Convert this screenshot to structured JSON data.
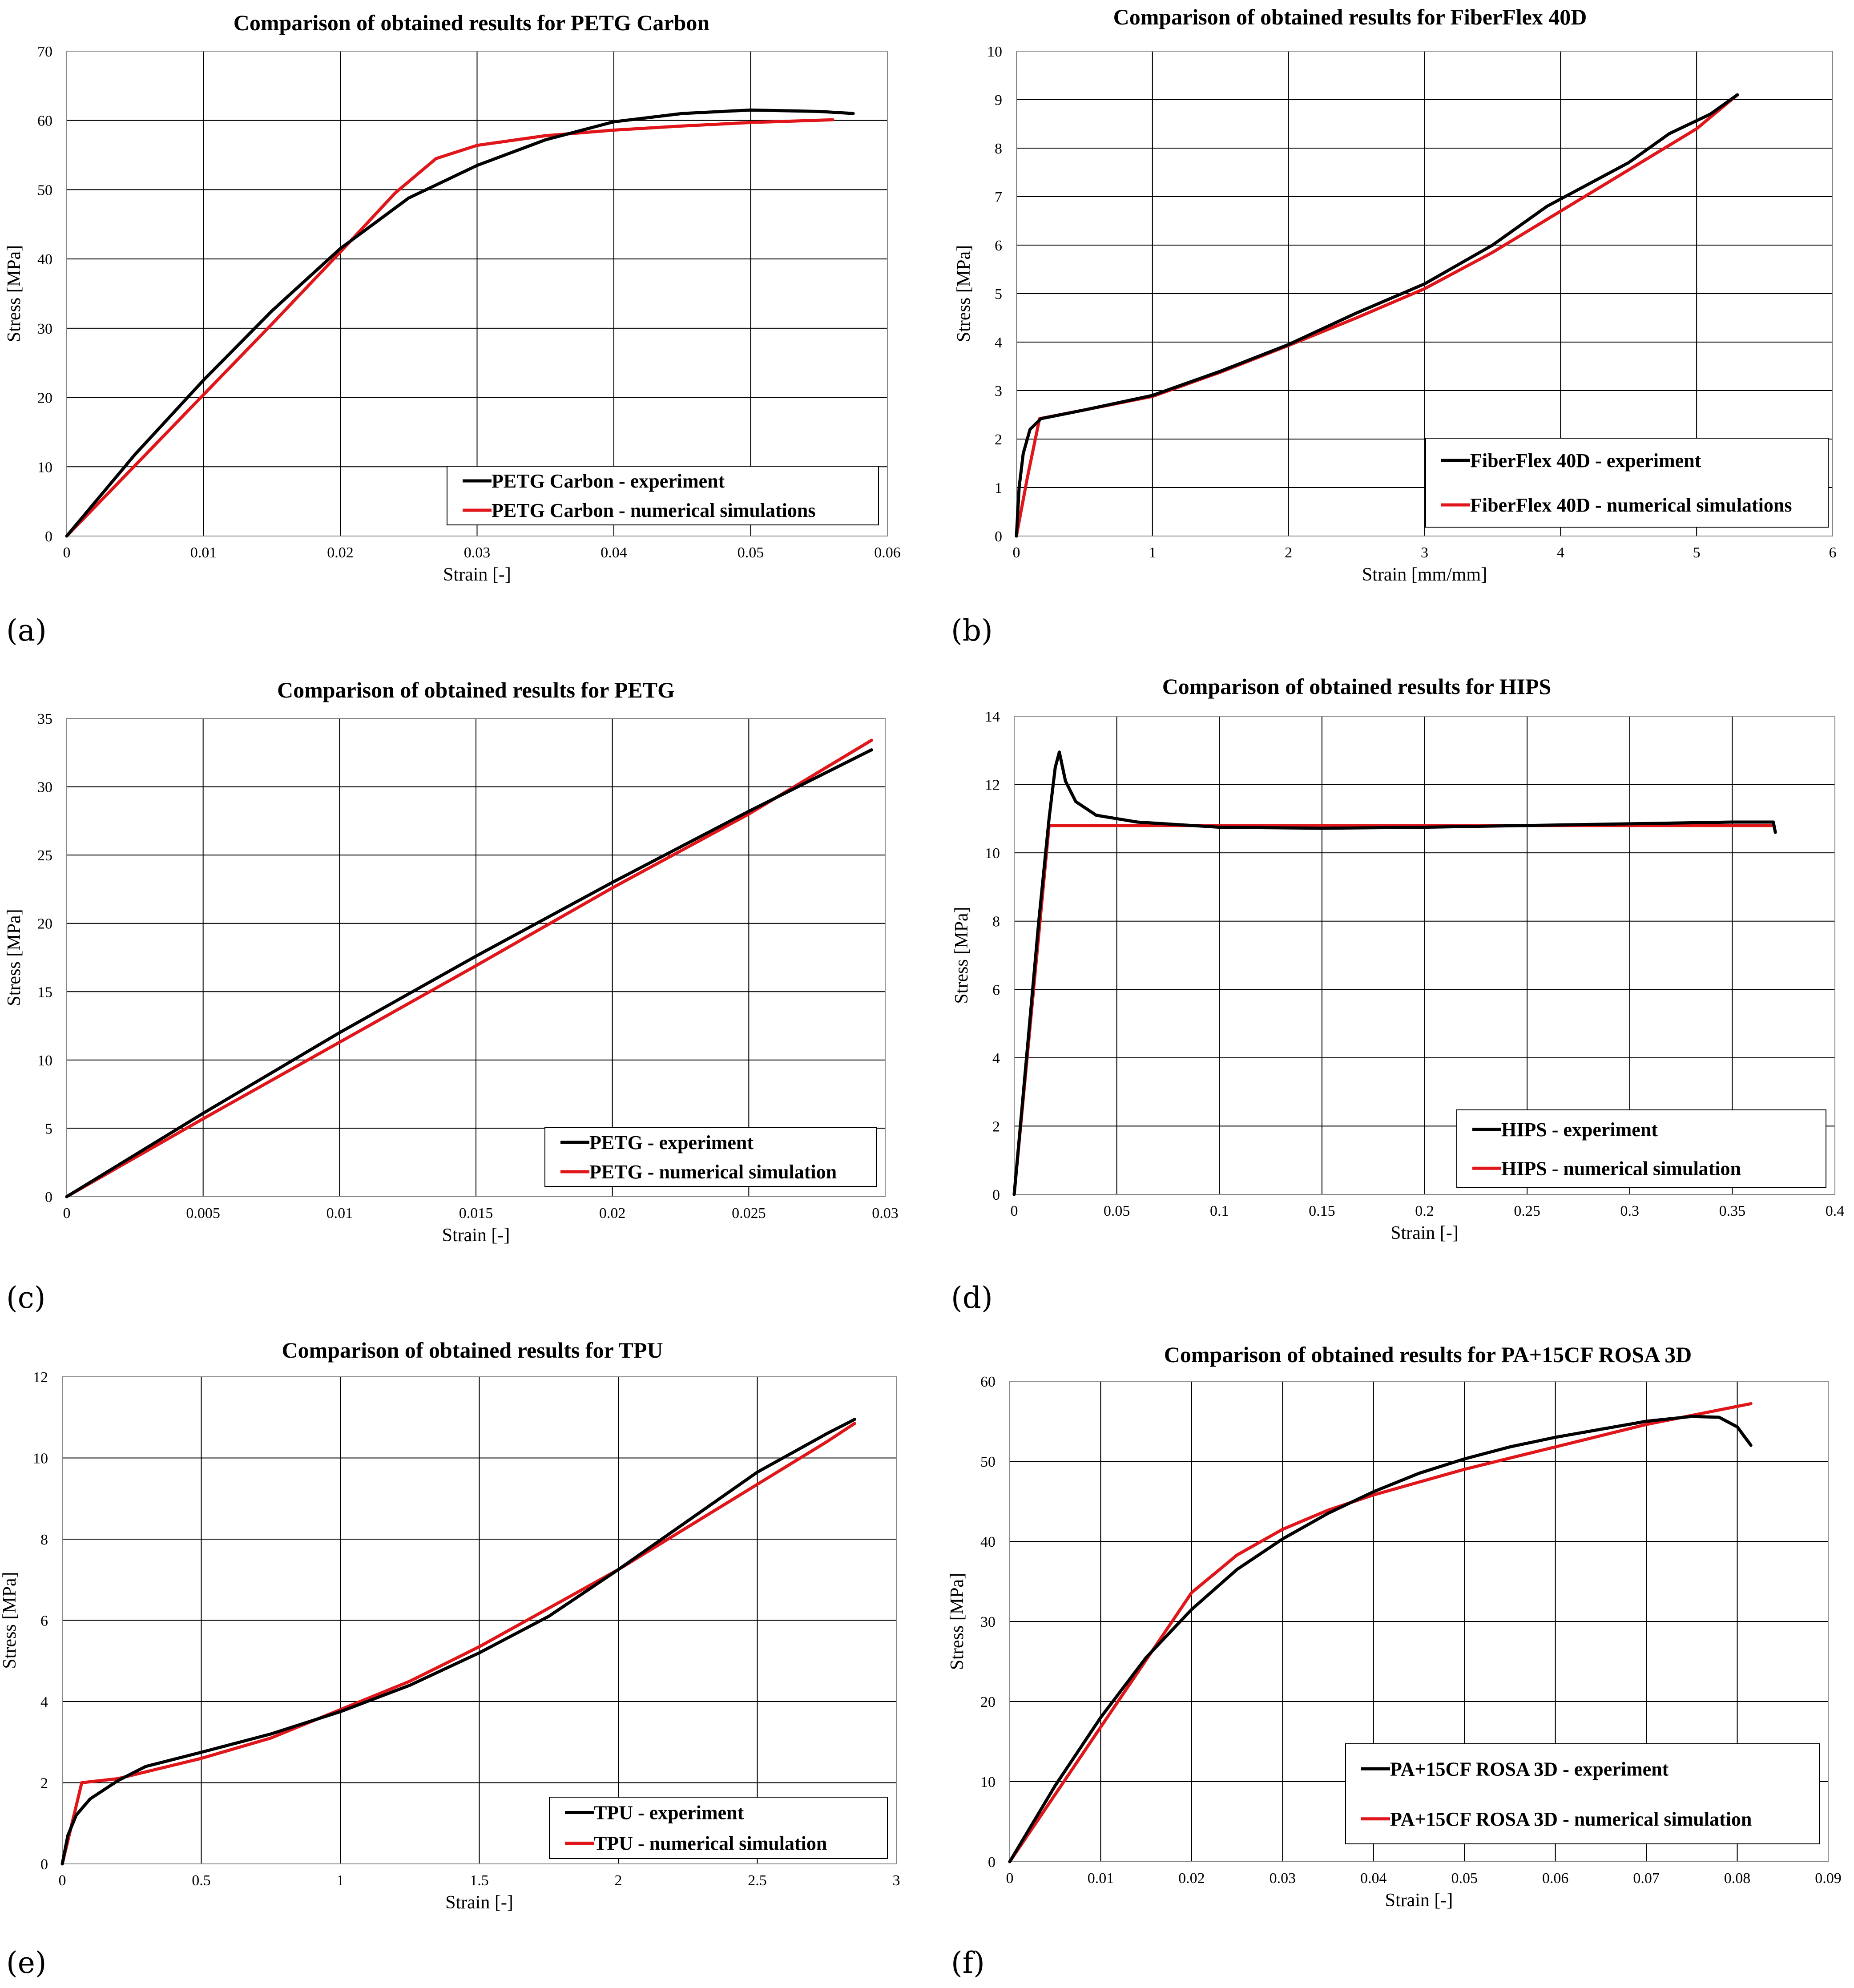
{
  "panel_labels": [
    "(a)",
    "(b)",
    "(c)",
    "(d)",
    "(e)",
    "(f)"
  ],
  "chart_data": [
    {
      "type": "line",
      "title": "Comparison of obtained results for PETG Carbon",
      "xlabel": "Strain [-]",
      "ylabel": "Stress [MPa]",
      "xlim": [
        0,
        0.06
      ],
      "ylim": [
        0,
        70
      ],
      "xticks": [
        0,
        0.01,
        0.02,
        0.03,
        0.04,
        0.05,
        0.06
      ],
      "yticks": [
        0,
        10,
        20,
        30,
        40,
        50,
        60,
        70
      ],
      "xtick_labels": [
        "0",
        "0.01",
        "0.02",
        "0.03",
        "0.04",
        "0.05",
        "0.06"
      ],
      "ytick_labels": [
        "0",
        "10",
        "20",
        "30",
        "40",
        "50",
        "60",
        "70"
      ],
      "grid": true,
      "legend": "bottom-right",
      "series": [
        {
          "name": "PETG Carbon - experiment",
          "color": "#000000",
          "points": [
            [
              0,
              0
            ],
            [
              0.005,
              11.8
            ],
            [
              0.01,
              22.5
            ],
            [
              0.015,
              32.5
            ],
            [
              0.02,
              41.5
            ],
            [
              0.025,
              48.8
            ],
            [
              0.03,
              53.5
            ],
            [
              0.035,
              57.2
            ],
            [
              0.04,
              59.8
            ],
            [
              0.045,
              61
            ],
            [
              0.05,
              61.5
            ],
            [
              0.055,
              61.3
            ],
            [
              0.0575,
              61
            ]
          ]
        },
        {
          "name": "PETG Carbon - numerical simulations",
          "color": "#e0161b",
          "points": [
            [
              0,
              0
            ],
            [
              0.005,
              10.2
            ],
            [
              0.01,
              20.4
            ],
            [
              0.015,
              30.6
            ],
            [
              0.02,
              41
            ],
            [
              0.024,
              49.5
            ],
            [
              0.027,
              54.5
            ],
            [
              0.03,
              56.4
            ],
            [
              0.035,
              57.8
            ],
            [
              0.04,
              58.6
            ],
            [
              0.045,
              59.2
            ],
            [
              0.05,
              59.7
            ],
            [
              0.056,
              60.1
            ]
          ]
        }
      ]
    },
    {
      "type": "line",
      "title": "Comparison of obtained results for FiberFlex 40D",
      "xlabel": "Strain [mm/mm]",
      "ylabel": "Stress [MPa]",
      "xlim": [
        0,
        6
      ],
      "ylim": [
        0,
        10
      ],
      "xticks": [
        0,
        1,
        2,
        3,
        4,
        5,
        6
      ],
      "yticks": [
        0,
        1,
        2,
        3,
        4,
        5,
        6,
        7,
        8,
        9,
        10
      ],
      "xtick_labels": [
        "0",
        "1",
        "2",
        "3",
        "4",
        "5",
        "6"
      ],
      "ytick_labels": [
        "0",
        "1",
        "2",
        "3",
        "4",
        "5",
        "6",
        "7",
        "8",
        "9",
        "10"
      ],
      "grid": true,
      "legend": "bottom-right",
      "series": [
        {
          "name": "FiberFlex 40D - experiment",
          "color": "#000000",
          "points": [
            [
              0,
              0
            ],
            [
              0.02,
              1
            ],
            [
              0.05,
              1.7
            ],
            [
              0.1,
              2.2
            ],
            [
              0.18,
              2.42
            ],
            [
              0.5,
              2.6
            ],
            [
              1,
              2.9
            ],
            [
              1.5,
              3.4
            ],
            [
              2,
              3.95
            ],
            [
              2.5,
              4.6
            ],
            [
              3,
              5.2
            ],
            [
              3.5,
              6
            ],
            [
              3.9,
              6.8
            ],
            [
              4.5,
              7.7
            ],
            [
              4.8,
              8.3
            ],
            [
              5.1,
              8.7
            ],
            [
              5.3,
              9.1
            ]
          ]
        },
        {
          "name": "FiberFlex 40D - numerical simulations",
          "color": "#e0161b",
          "points": [
            [
              0,
              0
            ],
            [
              0.08,
              1.2
            ],
            [
              0.17,
              2.42
            ],
            [
              0.5,
              2.6
            ],
            [
              1,
              2.88
            ],
            [
              1.5,
              3.38
            ],
            [
              2,
              3.93
            ],
            [
              2.5,
              4.5
            ],
            [
              3,
              5.1
            ],
            [
              3.5,
              5.85
            ],
            [
              4,
              6.7
            ],
            [
              4.5,
              7.55
            ],
            [
              5,
              8.4
            ],
            [
              5.3,
              9.1
            ]
          ]
        }
      ]
    },
    {
      "type": "line",
      "title": "Comparison of obtained results for PETG",
      "xlabel": "Strain [-]",
      "ylabel": "Stress [MPa]",
      "xlim": [
        0,
        0.03
      ],
      "ylim": [
        0,
        35
      ],
      "xticks": [
        0,
        0.005,
        0.01,
        0.015,
        0.02,
        0.025,
        0.03
      ],
      "yticks": [
        0,
        5,
        10,
        15,
        20,
        25,
        30,
        35
      ],
      "xtick_labels": [
        "0",
        "0.005",
        "0.01",
        "0.015",
        "0.02",
        "0.025",
        "0.03"
      ],
      "ytick_labels": [
        "0",
        "5",
        "10",
        "15",
        "20",
        "25",
        "30",
        "35"
      ],
      "grid": true,
      "legend": "bottom-right",
      "series": [
        {
          "name": "PETG - experiment",
          "color": "#000000",
          "points": [
            [
              0,
              0
            ],
            [
              0.005,
              6.1
            ],
            [
              0.01,
              12
            ],
            [
              0.015,
              17.6
            ],
            [
              0.02,
              23
            ],
            [
              0.025,
              28.2
            ],
            [
              0.0295,
              32.7
            ]
          ]
        },
        {
          "name": "PETG - numerical simulation",
          "color": "#e0161b",
          "points": [
            [
              0,
              0
            ],
            [
              0.005,
              5.7
            ],
            [
              0.01,
              11.3
            ],
            [
              0.015,
              16.9
            ],
            [
              0.02,
              22.6
            ],
            [
              0.025,
              28
            ],
            [
              0.0295,
              33.4
            ]
          ]
        }
      ]
    },
    {
      "type": "line",
      "title": "Comparison of obtained results for HIPS",
      "xlabel": "Strain [-]",
      "ylabel": "Stress [MPa]",
      "xlim": [
        0,
        0.4
      ],
      "ylim": [
        0,
        14
      ],
      "xticks": [
        0,
        0.05,
        0.1,
        0.15,
        0.2,
        0.25,
        0.3,
        0.35,
        0.4
      ],
      "yticks": [
        0,
        2,
        4,
        6,
        8,
        10,
        12,
        14
      ],
      "xtick_labels": [
        "0",
        "0.05",
        "0.1",
        "0.15",
        "0.2",
        "0.25",
        "0.3",
        "0.35",
        "0.4"
      ],
      "ytick_labels": [
        "0",
        "2",
        "4",
        "6",
        "8",
        "10",
        "12",
        "14"
      ],
      "grid": true,
      "legend": "bottom-right",
      "series": [
        {
          "name": "HIPS - experiment",
          "color": "#000000",
          "points": [
            [
              0,
              0
            ],
            [
              0.006,
              4
            ],
            [
              0.012,
              8
            ],
            [
              0.017,
              11
            ],
            [
              0.02,
              12.5
            ],
            [
              0.022,
              12.95
            ],
            [
              0.025,
              12.1
            ],
            [
              0.03,
              11.5
            ],
            [
              0.04,
              11.1
            ],
            [
              0.06,
              10.9
            ],
            [
              0.1,
              10.75
            ],
            [
              0.15,
              10.72
            ],
            [
              0.2,
              10.75
            ],
            [
              0.25,
              10.8
            ],
            [
              0.3,
              10.85
            ],
            [
              0.35,
              10.9
            ],
            [
              0.37,
              10.9
            ],
            [
              0.371,
              10.6
            ]
          ]
        },
        {
          "name": "HIPS - numerical simulation",
          "color": "#e0161b",
          "points": [
            [
              0,
              0
            ],
            [
              0.017,
              10.8
            ],
            [
              0.37,
              10.8
            ]
          ]
        }
      ]
    },
    {
      "type": "line",
      "title": "Comparison of obtained results for TPU",
      "xlabel": "Strain [-]",
      "ylabel": "Stress [MPa]",
      "xlim": [
        0,
        3
      ],
      "ylim": [
        0,
        12
      ],
      "xticks": [
        0,
        0.5,
        1,
        1.5,
        2,
        2.5,
        3
      ],
      "yticks": [
        0,
        2,
        4,
        6,
        8,
        10,
        12
      ],
      "xtick_labels": [
        "0",
        "0.5",
        "1",
        "1.5",
        "2",
        "2.5",
        "3"
      ],
      "ytick_labels": [
        "0",
        "2",
        "4",
        "6",
        "8",
        "10",
        "12"
      ],
      "grid": true,
      "legend": "bottom-right",
      "series": [
        {
          "name": "TPU - experiment",
          "color": "#000000",
          "points": [
            [
              0,
              0
            ],
            [
              0.02,
              0.7
            ],
            [
              0.05,
              1.2
            ],
            [
              0.1,
              1.6
            ],
            [
              0.2,
              2.05
            ],
            [
              0.3,
              2.4
            ],
            [
              0.5,
              2.75
            ],
            [
              0.75,
              3.2
            ],
            [
              1,
              3.75
            ],
            [
              1.25,
              4.4
            ],
            [
              1.5,
              5.2
            ],
            [
              1.75,
              6.1
            ],
            [
              2,
              7.25
            ],
            [
              2.25,
              8.45
            ],
            [
              2.5,
              9.65
            ],
            [
              2.75,
              10.6
            ],
            [
              2.85,
              10.95
            ]
          ]
        },
        {
          "name": "TPU - numerical simulation",
          "color": "#e0161b",
          "points": [
            [
              0,
              0
            ],
            [
              0.07,
              2
            ],
            [
              0.2,
              2.1
            ],
            [
              0.5,
              2.6
            ],
            [
              0.75,
              3.1
            ],
            [
              1,
              3.8
            ],
            [
              1.25,
              4.5
            ],
            [
              1.5,
              5.35
            ],
            [
              1.75,
              6.3
            ],
            [
              2,
              7.25
            ],
            [
              2.25,
              8.3
            ],
            [
              2.5,
              9.35
            ],
            [
              2.75,
              10.4
            ],
            [
              2.85,
              10.85
            ]
          ]
        }
      ]
    },
    {
      "type": "line",
      "title": "Comparison of obtained results for PA+15CF ROSA 3D",
      "xlabel": "Strain [-]",
      "ylabel": "Stress [MPa]",
      "xlim": [
        0,
        0.09
      ],
      "ylim": [
        0,
        60
      ],
      "xticks": [
        0,
        0.01,
        0.02,
        0.03,
        0.04,
        0.05,
        0.06,
        0.07,
        0.08,
        0.09
      ],
      "yticks": [
        0,
        10,
        20,
        30,
        40,
        50,
        60
      ],
      "xtick_labels": [
        "0",
        "0.01",
        "0.02",
        "0.03",
        "0.04",
        "0.05",
        "0.06",
        "0.07",
        "0.08",
        "0.09"
      ],
      "ytick_labels": [
        "0",
        "10",
        "20",
        "30",
        "40",
        "50",
        "60"
      ],
      "grid": true,
      "legend": "bottom-right",
      "series": [
        {
          "name": "PA+15CF ROSA 3D - experiment",
          "color": "#000000",
          "points": [
            [
              0,
              0
            ],
            [
              0.005,
              9.5
            ],
            [
              0.01,
              18
            ],
            [
              0.015,
              25.5
            ],
            [
              0.02,
              31.5
            ],
            [
              0.025,
              36.5
            ],
            [
              0.03,
              40.3
            ],
            [
              0.035,
              43.5
            ],
            [
              0.04,
              46.2
            ],
            [
              0.045,
              48.5
            ],
            [
              0.05,
              50.3
            ],
            [
              0.055,
              51.8
            ],
            [
              0.06,
              53
            ],
            [
              0.065,
              54
            ],
            [
              0.07,
              55
            ],
            [
              0.075,
              55.6
            ],
            [
              0.078,
              55.5
            ],
            [
              0.08,
              54.3
            ],
            [
              0.0815,
              52
            ]
          ]
        },
        {
          "name": "PA+15CF ROSA 3D - numerical simulation",
          "color": "#e0161b",
          "points": [
            [
              0,
              0
            ],
            [
              0.005,
              8.4
            ],
            [
              0.01,
              16.8
            ],
            [
              0.015,
              25.2
            ],
            [
              0.02,
              33.6
            ],
            [
              0.025,
              38.3
            ],
            [
              0.03,
              41.5
            ],
            [
              0.035,
              43.9
            ],
            [
              0.04,
              45.8
            ],
            [
              0.05,
              49
            ],
            [
              0.06,
              51.8
            ],
            [
              0.07,
              54.6
            ],
            [
              0.0815,
              57.2
            ]
          ]
        }
      ]
    }
  ]
}
